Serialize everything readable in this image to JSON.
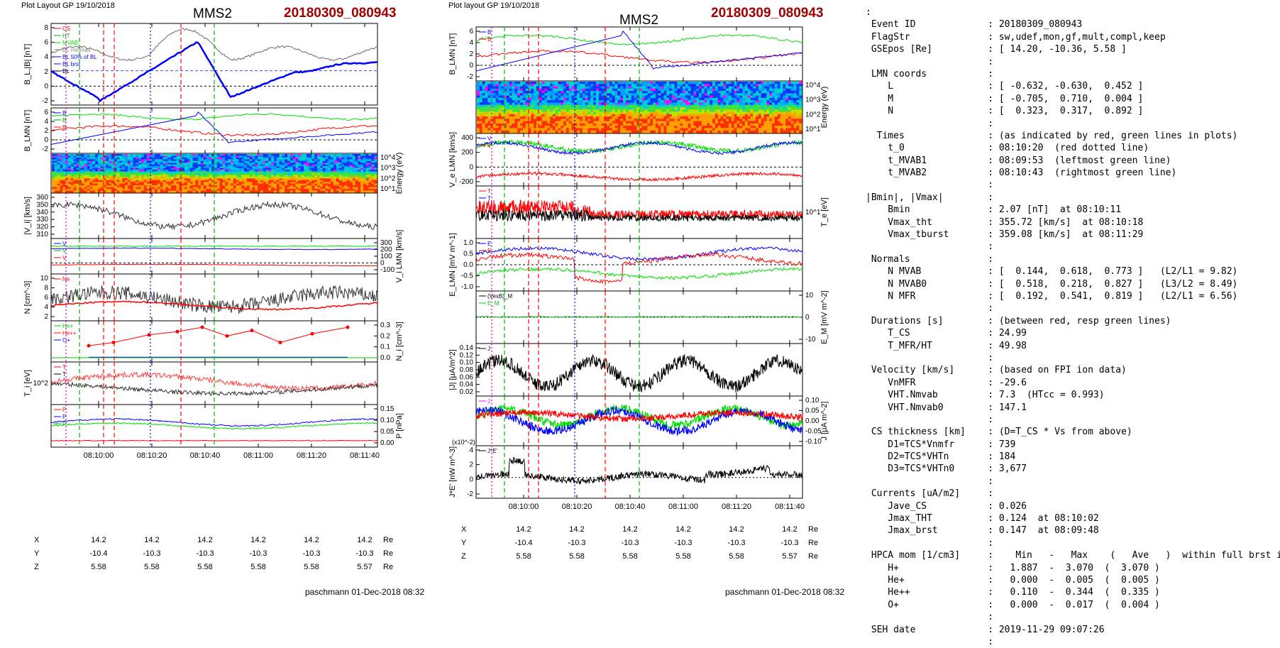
{
  "header": {
    "left_note": "Plot Layout GP 19/10/2018",
    "right_note": "Plot layout GP 19/10/2018",
    "spacecraft": "MMS2",
    "event": "20180309_080943"
  },
  "footer": {
    "left": "paschmann 01-Dec-2018 08:32",
    "right": "paschmann 01-Dec-2018 08:32"
  },
  "time_ticks": [
    "08:10:00",
    "08:10:20",
    "08:10:40",
    "08:11:00",
    "08:11:20",
    "08:11:40"
  ],
  "position_table": {
    "labels": [
      "X",
      "Y",
      "Z"
    ],
    "unit": "Re",
    "rows": [
      [
        "14.2",
        "14.2",
        "14.2",
        "14.2",
        "14.2",
        "14.2"
      ],
      [
        "-10.4",
        "-10.3",
        "-10.3",
        "-10.3",
        "-10.3",
        "-10.3"
      ],
      [
        "5.58",
        "5.58",
        "5.58",
        "5.58",
        "5.58",
        "5.57"
      ]
    ]
  },
  "colors": {
    "bl": "#0000ff",
    "red": "#ff0000",
    "green": "#00dd00",
    "gray": "#777777",
    "black": "#000000",
    "title_red": "#a00000"
  },
  "chart_data": [
    {
      "type": "line",
      "panel": "left",
      "time_ticks": [
        "08:10:00",
        "08:10:20",
        "08:10:40",
        "08:11:00",
        "08:11:20",
        "08:11:40"
      ],
      "panels": [
        {
          "ylabel": "B_L,|B| [nT]",
          "yticks": [
            "8",
            "6",
            "4",
            "2",
            "0",
            "-2"
          ],
          "legend": [
            "CS",
            "HT",
            "MVAB",
            "BL minmax",
            "BL 50% of BL",
            "BL brst",
            "BL"
          ]
        },
        {
          "ylabel": "B_LMN [nT]",
          "yticks": [
            "6",
            "4",
            "2",
            "0",
            "-2"
          ],
          "legend": [
            "B",
            "B",
            "B"
          ]
        },
        {
          "type": "heatmap",
          "ylabel_right": "Energy (eV)",
          "yticks_right": [
            "10^4",
            "10^3",
            "10^2",
            "10^1"
          ]
        },
        {
          "ylabel": "|V_i| [km/s]",
          "yticks": [
            "360",
            "350",
            "340",
            "330",
            "320",
            "310"
          ]
        },
        {
          "ylabel_right": "V_i LMN [km/s]",
          "yticks_right": [
            "300",
            "200",
            "100",
            "0",
            "-100"
          ],
          "legend": [
            "V",
            "V",
            "V"
          ]
        },
        {
          "ylabel": "N [cm^-3]",
          "yticks": [
            "10",
            "8",
            "6",
            "4",
            "2"
          ],
          "legend": [
            "Ne"
          ]
        },
        {
          "ylabel_right": "N_i [cm^-3]",
          "yticks_right": [
            "0.3",
            "0.2",
            "0.1",
            "0.0"
          ],
          "legend": [
            "He+",
            "He++",
            "O+"
          ]
        },
        {
          "ylabel": "T_i [eV]",
          "yticks": [
            "10^2"
          ],
          "legend": [
            "T",
            "T"
          ]
        },
        {
          "ylabel_right": "P [nPa]",
          "yticks_right": [
            "0.15",
            "0.10",
            "0.05",
            "0.00"
          ],
          "legend": [
            "P",
            "P",
            "P"
          ]
        }
      ]
    },
    {
      "type": "line",
      "panel": "middle",
      "time_ticks": [
        "08:10:00",
        "08:10:20",
        "08:10:40",
        "08:11:00",
        "08:11:20",
        "08:11:40"
      ],
      "panels": [
        {
          "ylabel": "B_LMN [nT]",
          "yticks": [
            "6",
            "4",
            "2",
            "0",
            "-2"
          ],
          "legend": [
            "B",
            "B"
          ]
        },
        {
          "type": "heatmap",
          "ylabel_right": "Energy (eV)",
          "yticks_right": [
            "10^4",
            "10^3",
            "10^2",
            "10^1"
          ]
        },
        {
          "ylabel": "V_e LMN [km/s]",
          "yticks": [
            "400",
            "200",
            "0",
            "-200"
          ],
          "legend": [
            "V",
            "V"
          ]
        },
        {
          "ylabel_right": "T_e [eV]",
          "yticks_right": [
            "10^1"
          ],
          "legend": [
            "T",
            "T"
          ]
        },
        {
          "ylabel": "E_LMN [mV m^-1]",
          "yticks": [
            "1.0",
            "0.5",
            "0.0",
            "-0.5",
            "-1.0"
          ],
          "legend": [
            "E",
            "E"
          ]
        },
        {
          "ylabel_right": "E_M [mV m^-2]",
          "yticks_right": [
            "10",
            "0",
            "-10"
          ],
          "legend": [
            "(VexB)_M",
            "E_M"
          ]
        },
        {
          "ylabel": "|J| [μA/m^2]",
          "yticks": [
            "0.14",
            "0.12",
            "0.10",
            "0.08",
            "0.06",
            "0.04",
            "0.02"
          ],
          "legend": [
            "J"
          ]
        },
        {
          "ylabel_right": "J [μA m^-2]",
          "yticks_right": [
            "0.10",
            "0.05",
            "0.00",
            "-0.05",
            "-0.10"
          ],
          "legend": [
            "J"
          ]
        },
        {
          "ylabel": "J*E' [nW m^-3]",
          "yticks": [
            "4",
            "2",
            "0",
            "-2"
          ],
          "exponent": "(x10^-2)",
          "legend": [
            "J*E'"
          ]
        }
      ]
    }
  ],
  "info": [
    [
      ":",
      ""
    ],
    [
      " Event ID             ",
      ": 20180309_080943"
    ],
    [
      " FlagStr              ",
      ": sw,udef,mon,gf,mult,compl,keep"
    ],
    [
      " GSEpos [Re]          ",
      ": [ 14.20, -10.36, 5.58 ]"
    ],
    [
      "                      ",
      ":"
    ],
    [
      " LMN coords           ",
      ":"
    ],
    [
      "    L                 ",
      ": [ -0.632, -0.630,  0.452 ]"
    ],
    [
      "    M                 ",
      ": [ -0.705,  0.710,  0.004 ]"
    ],
    [
      "    N                 ",
      ": [  0.323,  0.317,  0.892 ]"
    ],
    [
      "                      ",
      ":"
    ],
    [
      "  Times               ",
      ": (as indicated by red, green lines in plots)"
    ],
    [
      "    t_0               ",
      ": 08:10:20  (red dotted line)"
    ],
    [
      "    t_MVAB1           ",
      ": 08:09:53  (leftmost green line)"
    ],
    [
      "    t_MVAB2           ",
      ": 08:10:43  (rightmost green line)"
    ],
    [
      "                      ",
      ":"
    ],
    [
      "|Bmin|, |Vmax|        ",
      ":"
    ],
    [
      "    Bmin              ",
      ": 2.07 [nT]  at 08:10:11"
    ],
    [
      "    Vmax_tht          ",
      ": 355.72 [km/s]  at 08:10:18"
    ],
    [
      "    Vmax_tburst       ",
      ": 359.08 [km/s]  at 08:11:29"
    ],
    [
      "                      ",
      ":"
    ],
    [
      " Normals              ",
      ":"
    ],
    [
      "    N MVAB            ",
      ": [  0.144,  0.618,  0.773 ]   (L2/L1 = 9.82)"
    ],
    [
      "    N MVAB0           ",
      ": [  0.518,  0.218,  0.827 ]   (L3/L2 = 8.49)"
    ],
    [
      "    N MFR             ",
      ": [  0.192,  0.541,  0.819 ]   (L2/L1 = 6.56)"
    ],
    [
      "                      ",
      ":"
    ],
    [
      " Durations [s]        ",
      ": (between red, resp green lines)"
    ],
    [
      "    T_CS              ",
      ": 24.99"
    ],
    [
      "    T_MFR/HT          ",
      ": 49.98"
    ],
    [
      "                      ",
      ":"
    ],
    [
      " Velocity [km/s]      ",
      ": (based on FPI ion data)"
    ],
    [
      "    VnMFR             ",
      ": -29.6"
    ],
    [
      "    VHT.Nmvab         ",
      ": 7.3  (HTcc = 0.993)"
    ],
    [
      "    VHT.Nmvab0        ",
      ": 147.1"
    ],
    [
      "                      ",
      ":"
    ],
    [
      " CS thickness [km]    ",
      ": (D=T_CS * Vs from above)"
    ],
    [
      "    D1=TCS*Vnmfr      ",
      ": 739"
    ],
    [
      "    D2=TCS*VHTn       ",
      ": 184"
    ],
    [
      "    D3=TCS*VHTn0      ",
      ": 3,677"
    ],
    [
      "                      ",
      ":"
    ],
    [
      " Currents [uA/m2]     ",
      ":"
    ],
    [
      "    Jave_CS           ",
      ": 0.026"
    ],
    [
      "    Jmax_THT          ",
      ": 0.124  at 08:10:02"
    ],
    [
      "    Jmax_brst         ",
      ": 0.147  at 08:09:48"
    ],
    [
      "                      ",
      ":"
    ],
    [
      " HPCA mom [1/cm3]     ",
      ":    Min   -   Max    (   Ave   )  within full brst int"
    ],
    [
      "    H+                ",
      ":   1.887  -  3.070  (  3.070 )"
    ],
    [
      "    He+               ",
      ":   0.000  -  0.005  (  0.005 )"
    ],
    [
      "    He++              ",
      ":   0.110  -  0.344  (  0.335 )"
    ],
    [
      "    O+                ",
      ":   0.000  -  0.017  (  0.004 )"
    ],
    [
      "                      ",
      ":"
    ],
    [
      " SEH date             ",
      ": 2019-11-29 09:07:26"
    ],
    [
      "                      ",
      ":"
    ]
  ]
}
